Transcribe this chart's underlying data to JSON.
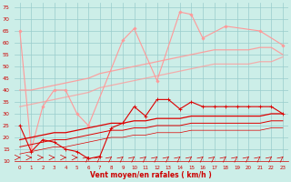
{
  "x": [
    0,
    1,
    2,
    3,
    4,
    5,
    6,
    7,
    8,
    9,
    10,
    11,
    12,
    13,
    14,
    15,
    16,
    17,
    18,
    19,
    20,
    21,
    22,
    23
  ],
  "salmon_jagged_x": [
    0,
    1,
    2,
    3,
    4,
    5,
    6,
    9,
    10,
    12,
    14,
    15,
    16,
    18,
    21,
    23
  ],
  "salmon_jagged_y": [
    65,
    15,
    33,
    40,
    40,
    30,
    25,
    61,
    66,
    44,
    73,
    72,
    62,
    67,
    65,
    59
  ],
  "trend_salmon1": [
    40,
    40,
    41,
    42,
    43,
    44,
    45,
    47,
    48,
    49,
    50,
    51,
    52,
    53,
    54,
    55,
    56,
    57,
    57,
    57,
    57,
    58,
    58,
    55
  ],
  "trend_salmon2": [
    33,
    34,
    35,
    36,
    37,
    38,
    39,
    41,
    42,
    43,
    44,
    45,
    46,
    47,
    48,
    49,
    50,
    51,
    51,
    51,
    51,
    52,
    52,
    54
  ],
  "red_jagged_x": [
    0,
    1,
    2,
    3,
    4,
    5,
    6,
    7,
    8,
    9,
    10,
    11,
    12,
    13,
    14,
    15,
    16,
    17,
    18,
    19,
    20,
    21,
    22,
    23
  ],
  "red_jagged_y": [
    25,
    14,
    19,
    18,
    15,
    14,
    11,
    12,
    24,
    26,
    33,
    29,
    36,
    36,
    32,
    35,
    33,
    33,
    33,
    33,
    33,
    33,
    33,
    30
  ],
  "trend_red1": [
    19,
    20,
    21,
    22,
    22,
    23,
    24,
    25,
    26,
    26,
    27,
    27,
    28,
    28,
    28,
    29,
    29,
    29,
    29,
    29,
    29,
    29,
    30,
    30
  ],
  "trend_red2": [
    16,
    17,
    18,
    19,
    19,
    20,
    21,
    22,
    23,
    23,
    24,
    24,
    25,
    25,
    25,
    26,
    26,
    26,
    26,
    26,
    26,
    26,
    27,
    27
  ],
  "trend_red3": [
    13,
    14,
    15,
    16,
    16,
    17,
    18,
    19,
    20,
    20,
    21,
    21,
    22,
    22,
    22,
    23,
    23,
    23,
    23,
    23,
    23,
    23,
    24,
    24
  ],
  "xlabel": "Vent moyen/en rafales ( km/h )",
  "ylim": [
    10,
    77
  ],
  "yticks": [
    10,
    15,
    20,
    25,
    30,
    35,
    40,
    45,
    50,
    55,
    60,
    65,
    70,
    75
  ],
  "bg_color": "#cceee8",
  "grid_color": "#99cccc",
  "salmon_color": "#ff9999",
  "red_color": "#dd0000",
  "red_dark_color": "#cc0000"
}
